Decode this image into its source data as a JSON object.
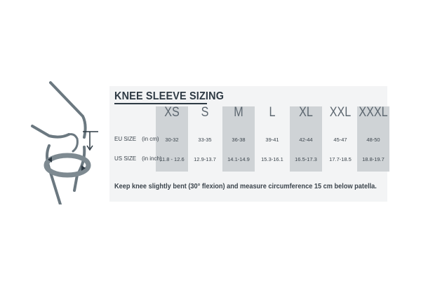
{
  "title": "KNEE SLEEVE SIZING",
  "sizes": [
    "XS",
    "S",
    "M",
    "L",
    "XL",
    "XXL",
    "XXXL"
  ],
  "rows": [
    {
      "label": "EU SIZE",
      "unit": "(in cm)",
      "values": [
        "30-32",
        "33-35",
        "36-38",
        "39-41",
        "42-44",
        "45-47",
        "48-50"
      ]
    },
    {
      "label": "US SIZE",
      "unit": "(in inch)",
      "values": [
        "11.8 - 12.6",
        "12.9-13.7",
        "14.1-14.9",
        "15.3-16.1",
        "16.5-17.3",
        "17.7-18.5",
        "18.8-19.7"
      ]
    }
  ],
  "footnote": "Keep knee slightly bent (30° flexion) and measure circumference 15 cm below patella.",
  "colors": {
    "panel": "#f3f4f5",
    "shaded_column": "#cfd3d6",
    "text": "#3b444c",
    "knee_outline": "#6b7880",
    "measure_band": "#7e8a91"
  }
}
